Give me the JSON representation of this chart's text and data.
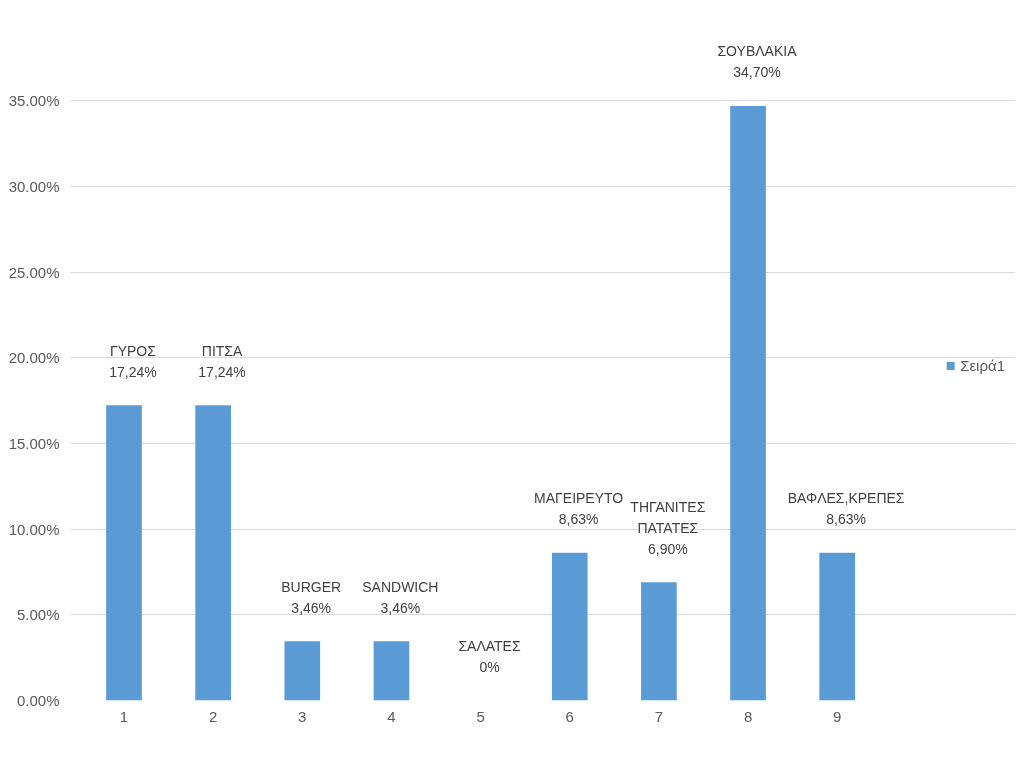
{
  "chart_data": {
    "type": "bar",
    "categories": [
      "1",
      "2",
      "3",
      "4",
      "5",
      "6",
      "7",
      "8",
      "9"
    ],
    "series": [
      {
        "name": "Σειρά1",
        "color": "#5b9bd5",
        "values": [
          17.24,
          17.24,
          3.46,
          3.46,
          0,
          8.63,
          6.9,
          34.7,
          8.63
        ],
        "value_labels": [
          "ΓΥΡΟΣ\n17,24%",
          "ΠΙΤΣΑ\n17,24%",
          "BURGER\n3,46%",
          "SANDWICH\n3,46%",
          "ΣΑΛΑΤΕΣ\n0%",
          "ΜΑΓΕΙΡΕΥΤΟ\n8,63%",
          "ΤΗΓΑΝΙΤΕΣ\nΠΑΤΑΤΕΣ\n6,90%",
          "ΣΟΥΒΛΑΚΙΑ\n34,70%",
          "ΒΑΦΛΕΣ,ΚΡΕΠΕΣ\n8,63%"
        ]
      }
    ],
    "ylim": [
      0,
      35
    ],
    "yticks": [
      {
        "value": 0,
        "label": "0.00%"
      },
      {
        "value": 5,
        "label": "5.00%"
      },
      {
        "value": 10,
        "label": "10.00%"
      },
      {
        "value": 15,
        "label": "15.00%"
      },
      {
        "value": 20,
        "label": "20.00%"
      },
      {
        "value": 25,
        "label": "25.00%"
      },
      {
        "value": 30,
        "label": "30.00%"
      },
      {
        "value": 35,
        "label": "35.00%"
      }
    ],
    "grid": "y",
    "legend": "right"
  }
}
